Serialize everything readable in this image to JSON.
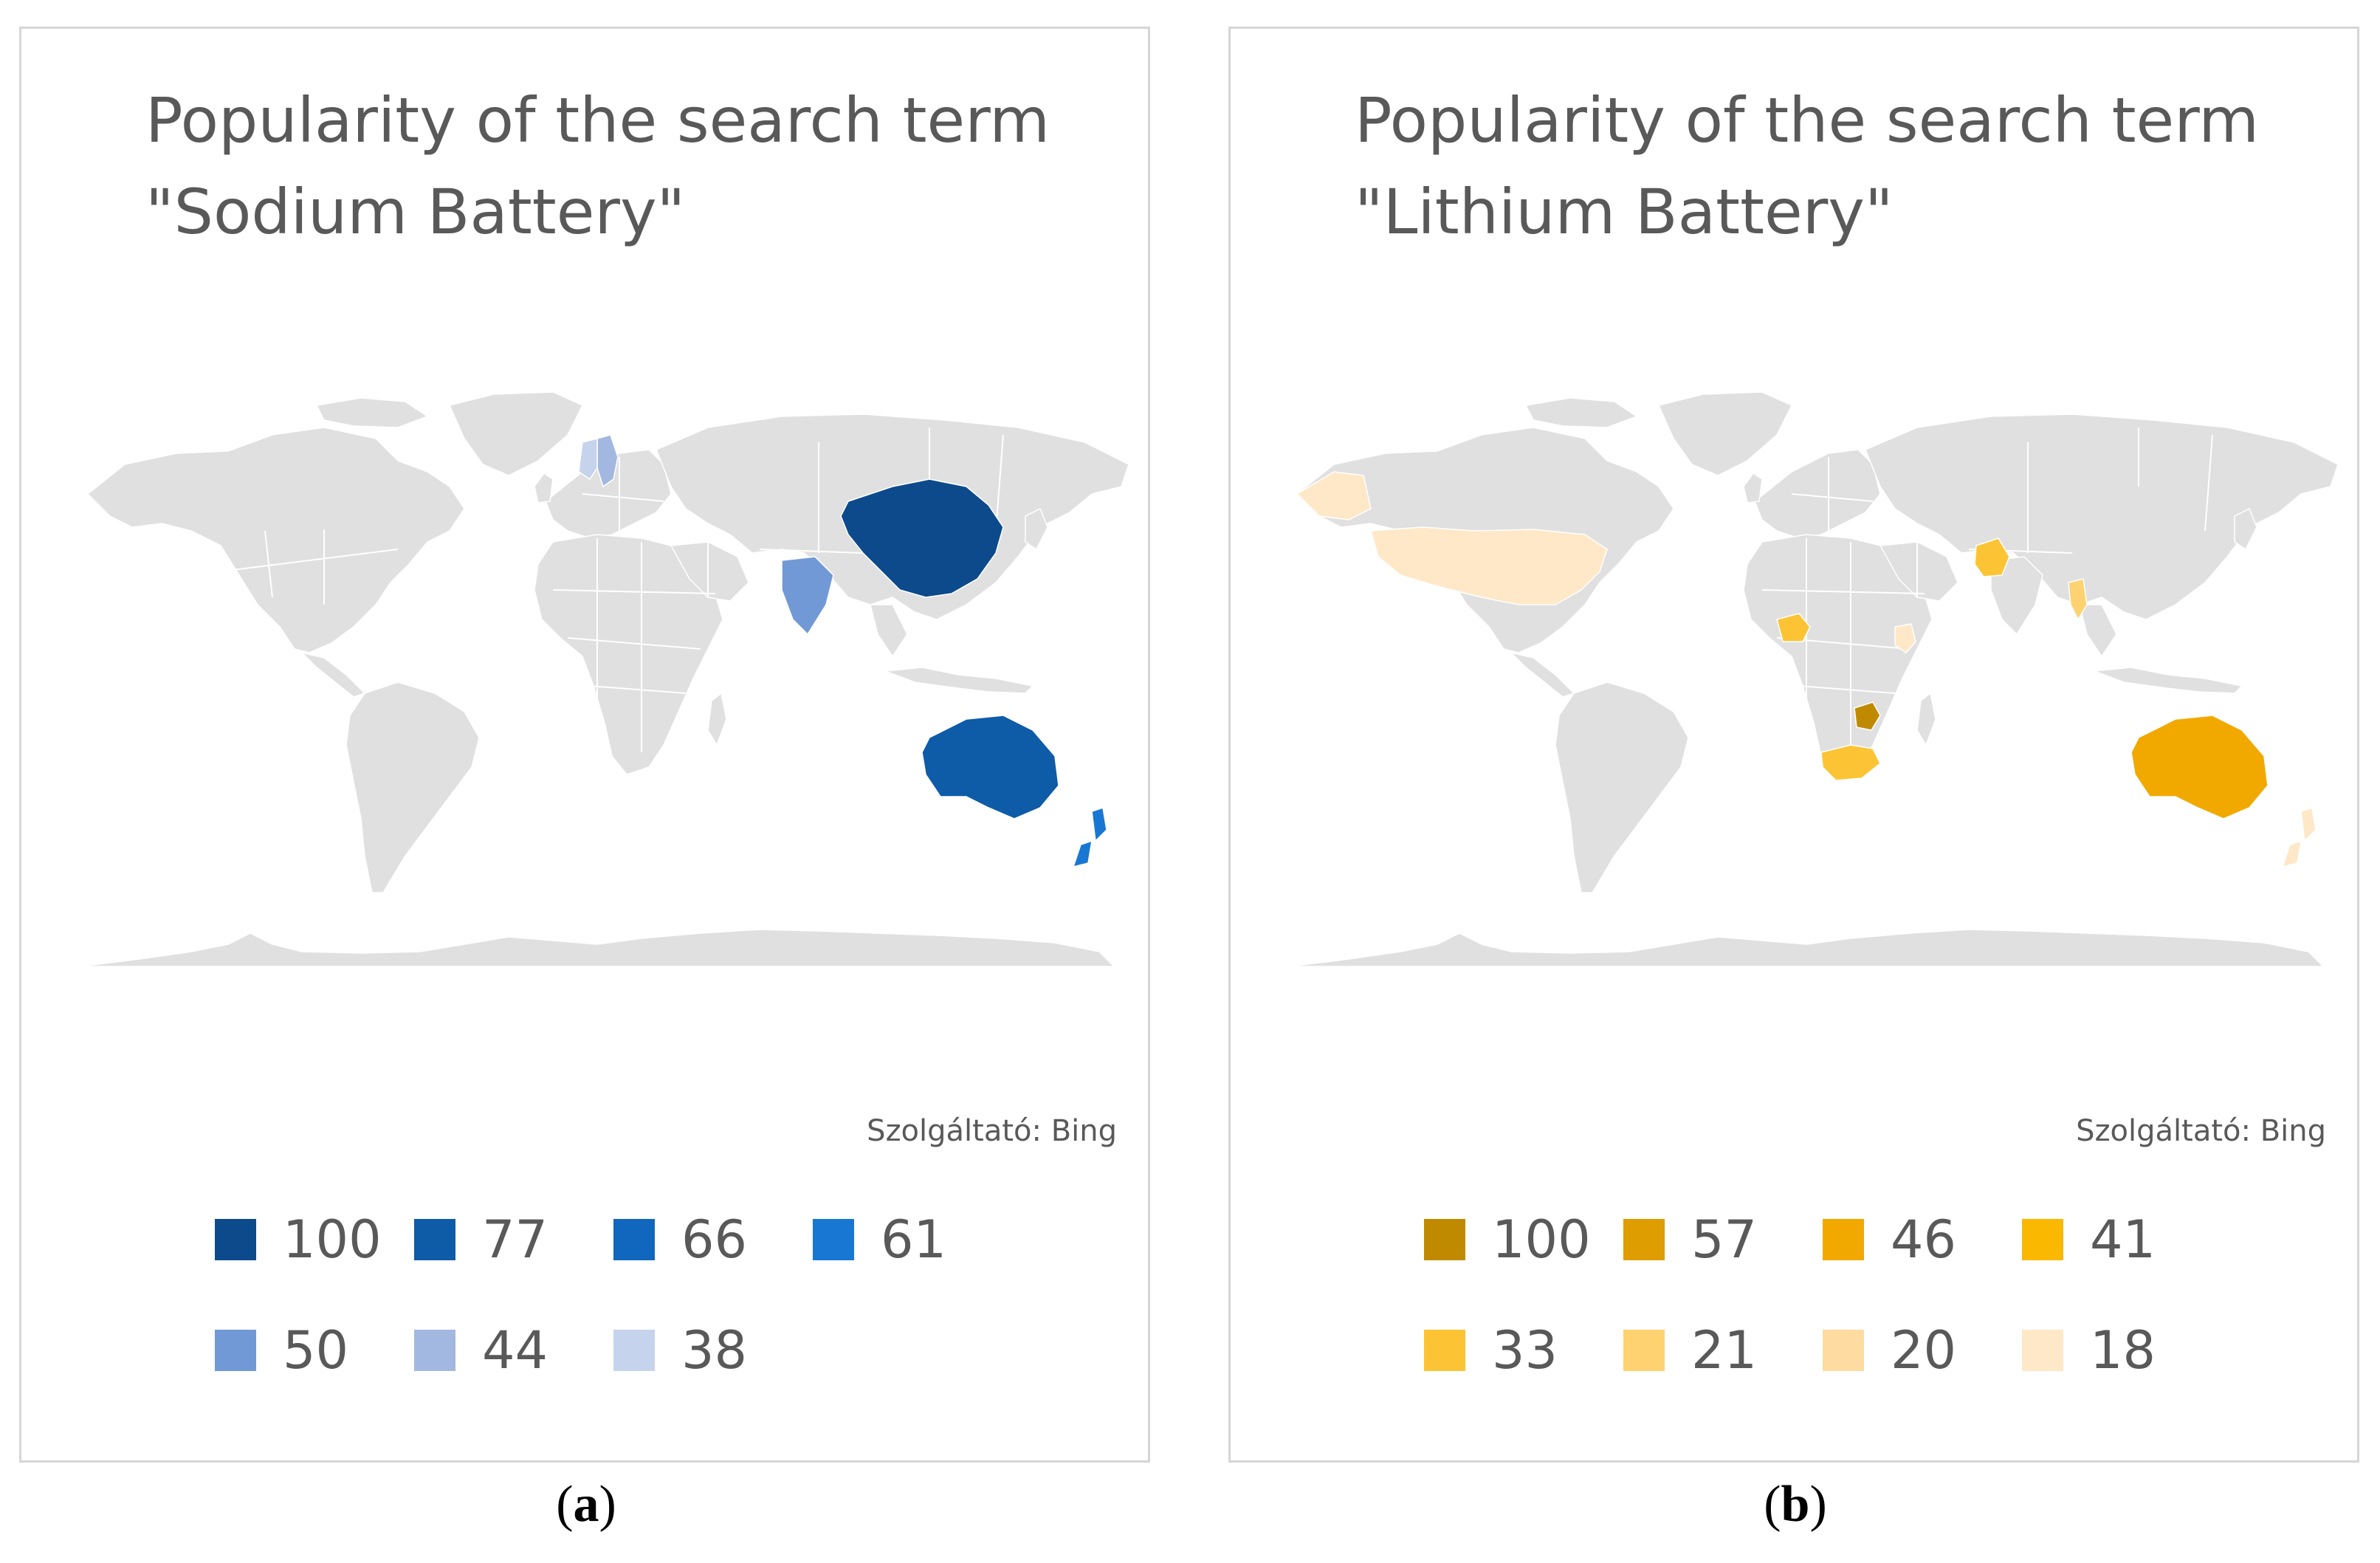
{
  "panels": [
    {
      "id": "a",
      "title_lines": [
        "Popularity of the search term",
        "\"Sodium Battery\""
      ],
      "credit": "Szolgáltató: Bing",
      "caption_letter": "a",
      "legend": [
        {
          "label": "100",
          "color": "#0d4a8c"
        },
        {
          "label": "77",
          "color": "#0e5ba8"
        },
        {
          "label": "66",
          "color": "#1166bd"
        },
        {
          "label": "61",
          "color": "#1877d2"
        },
        {
          "label": "50",
          "color": "#7199d6"
        },
        {
          "label": "44",
          "color": "#a3b8e0"
        },
        {
          "label": "38",
          "color": "#c6d3ec"
        }
      ],
      "regions": [
        {
          "name": "China",
          "value": 100
        },
        {
          "name": "Australia",
          "value": 77
        },
        {
          "name": "New Zealand",
          "value": 61
        },
        {
          "name": "India",
          "value": 50
        },
        {
          "name": "Sweden",
          "value": 44
        },
        {
          "name": "Norway",
          "value": 38
        }
      ]
    },
    {
      "id": "b",
      "title_lines": [
        "Popularity of the search term",
        "\"Lithium Battery\""
      ],
      "credit": "Szolgáltató: Bing",
      "caption_letter": "b",
      "legend": [
        {
          "label": "100",
          "color": "#c08a00"
        },
        {
          "label": "57",
          "color": "#de9d00"
        },
        {
          "label": "46",
          "color": "#f1a900"
        },
        {
          "label": "41",
          "color": "#fbb800"
        },
        {
          "label": "33",
          "color": "#fcc434"
        },
        {
          "label": "21",
          "color": "#fed171"
        },
        {
          "label": "20",
          "color": "#fedba0"
        },
        {
          "label": "18",
          "color": "#ffe8c8"
        }
      ],
      "regions": [
        {
          "name": "Zimbabwe",
          "value": 100
        },
        {
          "name": "Australia",
          "value": 46
        },
        {
          "name": "South Africa",
          "value": 33
        },
        {
          "name": "Pakistan",
          "value": 33
        },
        {
          "name": "Nigeria",
          "value": 33
        },
        {
          "name": "Myanmar",
          "value": 21
        },
        {
          "name": "United States",
          "value": 18
        },
        {
          "name": "Alaska",
          "value": 18
        },
        {
          "name": "Kenya",
          "value": 18
        },
        {
          "name": "New Zealand",
          "value": 18
        }
      ]
    }
  ]
}
